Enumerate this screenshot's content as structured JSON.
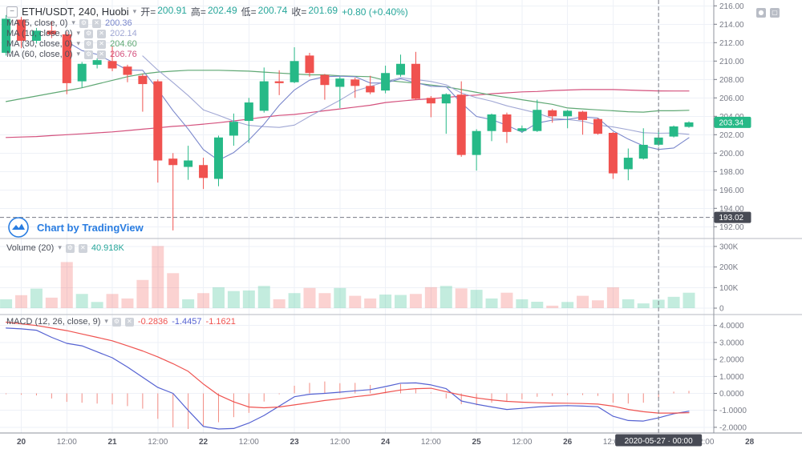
{
  "header": {
    "symbol": "ETH/USDT, 240, Huobi",
    "o_label": "开=",
    "o_value": "200.91",
    "h_label": "高=",
    "h_value": "202.49",
    "l_label": "低=",
    "l_value": "200.74",
    "c_label": "收=",
    "c_value": "201.69",
    "change": "+0.80 (+0.40%)"
  },
  "legend": {
    "ma_rows": [
      {
        "label": "MA (5, close, 0)",
        "value": "200.36",
        "color": "#7986cb"
      },
      {
        "label": "MA (10, close, 0)",
        "value": "202.14",
        "color": "#a0a7d4"
      },
      {
        "label": "MA (30, close, 0)",
        "value": "204.60",
        "color": "#5fa874"
      },
      {
        "label": "MA (60, close, 0)",
        "value": "206.76",
        "color": "#d4517d"
      }
    ],
    "volume": {
      "label": "Volume (20)",
      "value": "40.918K"
    },
    "macd": {
      "label": "MACD (12, 26, close, 9)",
      "hist_value": "-0.2836",
      "macd_value": "-1.4457",
      "signal_value": "-1.1621"
    }
  },
  "attribution": {
    "text": "Chart by TradingView"
  },
  "colors": {
    "up": "#26b987",
    "down": "#f0524f",
    "vol_up": "rgba(38,185,135,0.28)",
    "vol_down": "rgba(240,82,79,0.26)",
    "ma5": "#7986cb",
    "ma10": "#a0a7d4",
    "ma30": "#5fa874",
    "ma60": "#d4517d",
    "macd_line": "#5562d2",
    "signal_line": "#ef5350",
    "hist": "#f28b82",
    "grid": "#eef1f7",
    "axis_text": "#787b86",
    "day_text": "#50535e",
    "separator": "#b7bac1",
    "axis_border": "#8f939d",
    "crosshair": "#777a85",
    "badge_dark": "#474a54",
    "value_green": "#26a69a"
  },
  "chart_data": {
    "type": "candlestick",
    "title": "ETH/USDT, 240, Huobi",
    "interval": "240",
    "panes": [
      "price",
      "volume",
      "macd"
    ],
    "price_axis": {
      "ticks": [
        {
          "v": 216,
          "label": "216.00"
        },
        {
          "v": 214,
          "label": "214.00"
        },
        {
          "v": 212,
          "label": "212.00"
        },
        {
          "v": 210,
          "label": "210.00"
        },
        {
          "v": 208,
          "label": "208.00"
        },
        {
          "v": 206,
          "label": "206.00"
        },
        {
          "v": 204,
          "label": "204.00"
        },
        {
          "v": 202,
          "label": "202.00"
        },
        {
          "v": 200,
          "label": "200.00"
        },
        {
          "v": 198,
          "label": "198.00"
        },
        {
          "v": 196,
          "label": "196.00"
        },
        {
          "v": 194,
          "label": "194.00"
        },
        {
          "v": 192,
          "label": "192.00"
        }
      ]
    },
    "volume_axis": {
      "ticks": [
        {
          "v": 300,
          "label": "300K"
        },
        {
          "v": 200,
          "label": "200K"
        },
        {
          "v": 100,
          "label": "100K"
        },
        {
          "v": 0,
          "label": "0"
        }
      ]
    },
    "macd_axis": {
      "ticks": [
        {
          "v": 4,
          "label": "4.0000"
        },
        {
          "v": 3,
          "label": "3.0000"
        },
        {
          "v": 2,
          "label": "2.0000"
        },
        {
          "v": 1,
          "label": "1.0000"
        },
        {
          "v": 0,
          "label": "0.0000"
        },
        {
          "v": -1,
          "label": "-1.0000"
        },
        {
          "v": -2,
          "label": "-2.0000"
        }
      ]
    },
    "time_axis": {
      "ticks": [
        {
          "slot": 1,
          "label": "20"
        },
        {
          "slot": 4,
          "label": "12:00"
        },
        {
          "slot": 7,
          "label": "21"
        },
        {
          "slot": 10,
          "label": "12:00"
        },
        {
          "slot": 13,
          "label": "22"
        },
        {
          "slot": 16,
          "label": "12:00"
        },
        {
          "slot": 19,
          "label": "23"
        },
        {
          "slot": 22,
          "label": "12:00"
        },
        {
          "slot": 25,
          "label": "24"
        },
        {
          "slot": 28,
          "label": "12:00"
        },
        {
          "slot": 31,
          "label": "25"
        },
        {
          "slot": 34,
          "label": "12:00"
        },
        {
          "slot": 37,
          "label": "26"
        },
        {
          "slot": 40,
          "label": "12:00"
        },
        {
          "slot": 43,
          "label": ""
        },
        {
          "slot": 46,
          "label": "12:00"
        },
        {
          "slot": 49,
          "label": "28"
        }
      ]
    },
    "candles": {
      "open": [
        210.9,
        214.5,
        212.2,
        213.3,
        212.9,
        207.8,
        209.6,
        210.0,
        209.4,
        208.4,
        207.8,
        199.4,
        198.5,
        198.7,
        197.2,
        201.9,
        203.5,
        204.6,
        207.8,
        207.7,
        210.6,
        208.5,
        207.2,
        208.0,
        207.3,
        206.8,
        208.5,
        209.7,
        206.0,
        205.4,
        206.35,
        199.8,
        202.4,
        204.2,
        202.4,
        202.4,
        204.65,
        204.0,
        204.5,
        203.7,
        202.2,
        198.25,
        199.4,
        200.91,
        201.8,
        202.85
      ],
      "high": [
        215.0,
        214.8,
        213.6,
        214.3,
        213.2,
        209.9,
        210.3,
        211.6,
        209.6,
        208.6,
        208.0,
        200.0,
        200.8,
        199.5,
        201.9,
        204.3,
        206.0,
        209.3,
        209.0,
        211.5,
        210.9,
        208.6,
        208.3,
        208.2,
        208.4,
        209.5,
        210.7,
        211.0,
        206.2,
        206.5,
        207.8,
        202.6,
        204.3,
        204.4,
        203.0,
        205.8,
        204.8,
        204.7,
        204.6,
        203.8,
        202.3,
        200.5,
        202.7,
        202.49,
        203.0,
        203.45
      ],
      "low": [
        210.6,
        211.4,
        211.9,
        212.5,
        206.4,
        207.1,
        209.2,
        208.9,
        207.7,
        204.5,
        196.8,
        191.6,
        197.1,
        196.1,
        196.4,
        200.8,
        201.1,
        204.4,
        206.3,
        207.6,
        208.3,
        205.8,
        204.9,
        206.0,
        206.4,
        206.5,
        208.3,
        205.8,
        203.9,
        202.1,
        199.6,
        198.1,
        201.3,
        201.1,
        202.2,
        202.3,
        203.3,
        202.7,
        202.0,
        202.0,
        197.2,
        197.05,
        199.3,
        200.74,
        201.7,
        202.75
      ],
      "close": [
        214.6,
        212.2,
        213.3,
        212.9,
        207.6,
        209.7,
        210.1,
        209.2,
        208.5,
        207.5,
        199.2,
        198.7,
        199.2,
        197.3,
        201.7,
        203.4,
        205.5,
        207.8,
        207.6,
        210.0,
        208.7,
        207.4,
        208.1,
        207.3,
        206.6,
        208.7,
        209.7,
        205.9,
        205.4,
        206.4,
        199.8,
        202.4,
        204.2,
        202.3,
        202.7,
        204.7,
        204.0,
        204.6,
        203.6,
        202.1,
        197.8,
        199.5,
        200.9,
        201.69,
        202.9,
        203.34
      ],
      "volume_k": [
        43,
        63,
        95,
        51,
        224,
        69,
        30,
        69,
        47,
        137,
        302,
        170,
        43,
        73,
        101,
        83,
        86,
        108,
        43,
        73,
        98,
        73,
        98,
        60,
        47,
        66,
        64,
        69,
        102,
        108,
        96,
        89,
        47,
        75,
        43,
        31,
        12,
        30,
        60,
        38,
        101,
        43,
        23,
        40.918,
        55,
        75
      ]
    },
    "overlays": {
      "ma30": [
        205.6,
        205.9,
        206.2,
        206.5,
        206.8,
        207.1,
        207.5,
        207.9,
        208.3,
        208.6,
        208.8,
        208.9,
        209.0,
        209.0,
        209.0,
        208.95,
        208.9,
        208.8,
        208.7,
        208.6,
        208.5,
        208.5,
        208.4,
        208.35,
        208.3,
        207.9,
        207.75,
        207.6,
        207.4,
        207.2,
        206.9,
        206.6,
        206.3,
        206.05,
        205.8,
        205.55,
        205.3,
        204.9,
        204.8,
        204.7,
        204.6,
        204.5,
        204.45,
        204.6,
        204.6,
        204.65
      ],
      "ma60": [
        201.7,
        201.75,
        201.8,
        201.9,
        202.0,
        202.1,
        202.2,
        202.3,
        202.45,
        202.6,
        202.75,
        202.9,
        203.0,
        203.15,
        203.3,
        203.5,
        203.7,
        203.9,
        204.1,
        204.2,
        204.4,
        204.6,
        204.8,
        205.0,
        205.2,
        205.5,
        205.65,
        205.8,
        205.9,
        206.05,
        206.2,
        206.3,
        206.45,
        206.55,
        206.65,
        206.7,
        206.8,
        206.85,
        206.9,
        206.9,
        206.9,
        206.85,
        206.8,
        206.76,
        206.75,
        206.75
      ]
    },
    "macd": {
      "hist": [
        -0.05,
        -0.08,
        -0.12,
        -0.3,
        -0.5,
        -0.55,
        -0.6,
        -0.65,
        -0.75,
        -0.9,
        -1.5,
        -2.0,
        -2.1,
        -1.9,
        -1.7,
        -1.4,
        -1.15,
        -0.48,
        -0.05,
        0.45,
        0.62,
        0.7,
        0.6,
        0.62,
        0.5,
        0.3,
        0.55,
        0.25,
        0.05,
        -0.3,
        -0.64,
        -0.7,
        -0.55,
        -0.5,
        -0.35,
        -0.2,
        -0.15,
        -0.1,
        -0.1,
        -0.15,
        -0.55,
        -0.6,
        -0.55,
        -0.2836,
        0.1,
        0.15
      ],
      "macd": [
        3.85,
        3.8,
        3.72,
        3.3,
        2.95,
        2.8,
        2.45,
        2.1,
        1.55,
        0.95,
        0.35,
        0.0,
        -1.0,
        -1.95,
        -2.1,
        -2.07,
        -1.75,
        -1.3,
        -0.75,
        -0.2,
        -0.05,
        0.0,
        0.07,
        0.15,
        0.22,
        0.4,
        0.6,
        0.62,
        0.5,
        0.28,
        -0.45,
        -0.64,
        -0.8,
        -0.95,
        -0.88,
        -0.8,
        -0.75,
        -0.72,
        -0.75,
        -0.79,
        -1.35,
        -1.6,
        -1.63,
        -1.4457,
        -1.2,
        -1.05
      ],
      "signal": [
        4.2,
        4.1,
        4.0,
        3.85,
        3.7,
        3.5,
        3.3,
        3.1,
        2.8,
        2.5,
        2.15,
        1.75,
        1.3,
        0.55,
        -0.1,
        -0.5,
        -0.8,
        -0.85,
        -0.8,
        -0.68,
        -0.55,
        -0.42,
        -0.32,
        -0.2,
        -0.1,
        0.05,
        0.2,
        0.28,
        0.3,
        0.1,
        -0.1,
        -0.27,
        -0.38,
        -0.47,
        -0.52,
        -0.55,
        -0.57,
        -0.58,
        -0.6,
        -0.63,
        -0.75,
        -0.95,
        -1.08,
        -1.1621,
        -1.16,
        -1.14
      ]
    },
    "crosshair": {
      "slot": 43,
      "price": 193.02,
      "price_label": "193.02",
      "time_label": "2020-05-27 · 00:00"
    },
    "last_price": {
      "value": 203.34,
      "label": "203.34"
    }
  }
}
